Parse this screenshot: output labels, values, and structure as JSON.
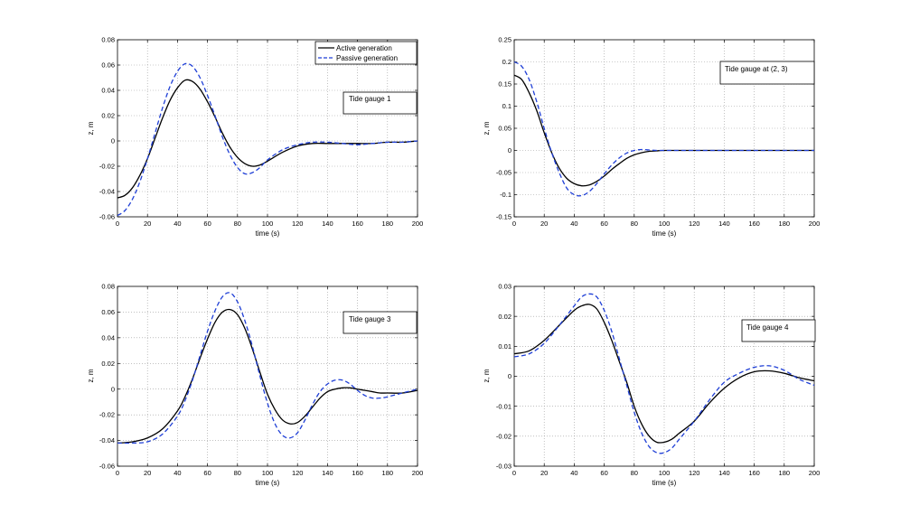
{
  "colors": {
    "active": "#000000",
    "passive": "#1f3fd6",
    "grid": "#9a9a9a"
  },
  "chart_data": [
    {
      "type": "line",
      "title": "",
      "xlabel": "time (s)",
      "ylabel": "z, m",
      "xlim": [
        0,
        200
      ],
      "ylim": [
        -0.06,
        0.08
      ],
      "xticks": [
        0,
        20,
        40,
        60,
        80,
        100,
        120,
        140,
        160,
        180,
        200
      ],
      "yticks": [
        -0.06,
        -0.04,
        -0.02,
        0,
        0.02,
        0.04,
        0.06,
        0.08
      ],
      "ytick_labels": [
        "-0.06",
        "-0.04",
        "-0.02",
        "0",
        "0.02",
        "0.04",
        "0.06",
        "0.08"
      ],
      "grid": true,
      "legend": {
        "position": "top-right",
        "entries": [
          "Active generation",
          "Passive generation"
        ]
      },
      "annotation": "Tide gauge 1",
      "series": [
        {
          "name": "Active generation",
          "style": "solid",
          "x": [
            0,
            5,
            10,
            15,
            20,
            25,
            30,
            35,
            40,
            45,
            50,
            55,
            60,
            65,
            70,
            75,
            80,
            85,
            90,
            95,
            100,
            110,
            120,
            130,
            140,
            150,
            160,
            170,
            180,
            190,
            200
          ],
          "y": [
            -0.045,
            -0.043,
            -0.037,
            -0.027,
            -0.014,
            0.002,
            0.018,
            0.032,
            0.042,
            0.048,
            0.047,
            0.041,
            0.031,
            0.019,
            0.006,
            -0.005,
            -0.013,
            -0.018,
            -0.02,
            -0.019,
            -0.016,
            -0.009,
            -0.004,
            -0.002,
            -0.002,
            -0.002,
            -0.002,
            -0.002,
            -0.001,
            -0.001,
            0
          ]
        },
        {
          "name": "Passive generation",
          "style": "dashed",
          "x": [
            0,
            5,
            10,
            15,
            20,
            25,
            30,
            35,
            40,
            45,
            50,
            55,
            60,
            65,
            70,
            75,
            80,
            85,
            90,
            95,
            100,
            110,
            120,
            130,
            140,
            150,
            160,
            170,
            180,
            190,
            200
          ],
          "y": [
            -0.059,
            -0.055,
            -0.046,
            -0.032,
            -0.014,
            0.006,
            0.026,
            0.043,
            0.055,
            0.061,
            0.059,
            0.05,
            0.036,
            0.02,
            0.003,
            -0.011,
            -0.021,
            -0.026,
            -0.025,
            -0.021,
            -0.015,
            -0.007,
            -0.003,
            -0.001,
            -0.001,
            -0.002,
            -0.003,
            -0.002,
            -0.001,
            -0.001,
            0
          ]
        }
      ]
    },
    {
      "type": "line",
      "title": "",
      "xlabel": "time (s)",
      "ylabel": "z, m",
      "xlim": [
        0,
        200
      ],
      "ylim": [
        -0.15,
        0.25
      ],
      "xticks": [
        0,
        20,
        40,
        60,
        80,
        100,
        120,
        140,
        160,
        180,
        200
      ],
      "yticks": [
        -0.15,
        -0.1,
        -0.05,
        0,
        0.05,
        0.1,
        0.15,
        0.2,
        0.25
      ],
      "ytick_labels": [
        "-0.15",
        "-0.1",
        "-0.05",
        "0",
        "0.05",
        "0.1",
        "0.15",
        "0.2",
        "0.25"
      ],
      "grid": true,
      "annotation": "Tide gauge at (2, 3)",
      "series": [
        {
          "name": "Active generation",
          "style": "solid",
          "x": [
            0,
            5,
            10,
            15,
            20,
            25,
            30,
            35,
            40,
            45,
            50,
            55,
            60,
            65,
            70,
            75,
            80,
            85,
            90,
            95,
            100,
            120,
            140,
            160,
            180,
            200
          ],
          "y": [
            0.17,
            0.16,
            0.13,
            0.09,
            0.04,
            -0.005,
            -0.04,
            -0.063,
            -0.075,
            -0.08,
            -0.078,
            -0.07,
            -0.058,
            -0.043,
            -0.03,
            -0.018,
            -0.01,
            -0.005,
            -0.002,
            -0.001,
            0,
            0,
            0,
            0,
            0,
            0
          ]
        },
        {
          "name": "Passive generation",
          "style": "dashed",
          "x": [
            0,
            5,
            10,
            15,
            20,
            25,
            30,
            35,
            40,
            45,
            50,
            55,
            60,
            65,
            70,
            75,
            80,
            85,
            90,
            95,
            100,
            120,
            140,
            160,
            180,
            200
          ],
          "y": [
            0.2,
            0.19,
            0.16,
            0.11,
            0.05,
            -0.005,
            -0.05,
            -0.085,
            -0.1,
            -0.102,
            -0.093,
            -0.075,
            -0.053,
            -0.033,
            -0.017,
            -0.006,
            0,
            0.002,
            0.001,
            0,
            0,
            0,
            0,
            0,
            0,
            0
          ]
        }
      ]
    },
    {
      "type": "line",
      "title": "",
      "xlabel": "time (s)",
      "ylabel": "z, m",
      "xlim": [
        0,
        200
      ],
      "ylim": [
        -0.06,
        0.08
      ],
      "xticks": [
        0,
        20,
        40,
        60,
        80,
        100,
        120,
        140,
        160,
        180,
        200
      ],
      "yticks": [
        -0.06,
        -0.04,
        -0.02,
        0,
        0.02,
        0.04,
        0.06,
        0.08
      ],
      "ytick_labels": [
        "-0.06",
        "-0.04",
        "-0.02",
        "0",
        "0.02",
        "0.04",
        "0.06",
        "0.08"
      ],
      "grid": true,
      "annotation": "Tide gauge 3",
      "series": [
        {
          "name": "Active generation",
          "style": "solid",
          "x": [
            0,
            10,
            20,
            30,
            40,
            45,
            50,
            55,
            60,
            65,
            70,
            75,
            80,
            85,
            90,
            95,
            100,
            105,
            110,
            115,
            120,
            125,
            130,
            135,
            140,
            145,
            150,
            155,
            160,
            165,
            170,
            175,
            180,
            190,
            200
          ],
          "y": [
            -0.042,
            -0.041,
            -0.038,
            -0.031,
            -0.017,
            -0.006,
            0.008,
            0.024,
            0.039,
            0.052,
            0.06,
            0.062,
            0.058,
            0.047,
            0.031,
            0.013,
            -0.004,
            -0.016,
            -0.024,
            -0.027,
            -0.026,
            -0.021,
            -0.014,
            -0.007,
            -0.002,
            0.0,
            0.001,
            0.001,
            0.0,
            -0.001,
            -0.002,
            -0.003,
            -0.003,
            -0.003,
            -0.001
          ]
        },
        {
          "name": "Passive generation",
          "style": "dashed",
          "x": [
            0,
            10,
            20,
            30,
            40,
            45,
            50,
            55,
            60,
            65,
            70,
            75,
            80,
            85,
            90,
            95,
            100,
            105,
            110,
            115,
            120,
            125,
            130,
            135,
            140,
            145,
            150,
            155,
            160,
            165,
            170,
            175,
            180,
            190,
            200
          ],
          "y": [
            -0.042,
            -0.042,
            -0.041,
            -0.035,
            -0.021,
            -0.009,
            0.007,
            0.026,
            0.045,
            0.061,
            0.072,
            0.075,
            0.068,
            0.053,
            0.033,
            0.01,
            -0.011,
            -0.027,
            -0.036,
            -0.038,
            -0.034,
            -0.024,
            -0.012,
            -0.002,
            0.004,
            0.007,
            0.007,
            0.004,
            -0.001,
            -0.005,
            -0.007,
            -0.007,
            -0.006,
            -0.003,
            0.0
          ]
        }
      ]
    },
    {
      "type": "line",
      "title": "",
      "xlabel": "time (s)",
      "ylabel": "z, m",
      "xlim": [
        0,
        200
      ],
      "ylim": [
        -0.03,
        0.03
      ],
      "xticks": [
        0,
        20,
        40,
        60,
        80,
        100,
        120,
        140,
        160,
        180,
        200
      ],
      "yticks": [
        -0.03,
        -0.02,
        -0.01,
        0,
        0.01,
        0.02,
        0.03
      ],
      "ytick_labels": [
        "-0.03",
        "-0.02",
        "-0.01",
        "0",
        "0.01",
        "0.02",
        "0.03"
      ],
      "grid": true,
      "annotation": "Tide gauge 4",
      "series": [
        {
          "name": "Active generation",
          "style": "solid",
          "x": [
            0,
            10,
            20,
            30,
            40,
            45,
            50,
            55,
            60,
            65,
            70,
            75,
            80,
            85,
            90,
            95,
            100,
            105,
            110,
            120,
            130,
            140,
            150,
            160,
            170,
            180,
            190,
            200
          ],
          "y": [
            0.0075,
            0.0085,
            0.012,
            0.017,
            0.022,
            0.0235,
            0.024,
            0.0225,
            0.018,
            0.012,
            0.005,
            -0.002,
            -0.01,
            -0.016,
            -0.02,
            -0.022,
            -0.022,
            -0.021,
            -0.019,
            -0.015,
            -0.009,
            -0.004,
            -0.0005,
            0.0015,
            0.0018,
            0.001,
            -0.0005,
            -0.0015
          ]
        },
        {
          "name": "Passive generation",
          "style": "dashed",
          "x": [
            0,
            10,
            20,
            30,
            40,
            45,
            50,
            55,
            60,
            65,
            70,
            75,
            80,
            85,
            90,
            95,
            100,
            105,
            110,
            120,
            130,
            140,
            150,
            160,
            170,
            180,
            190,
            200
          ],
          "y": [
            0.0065,
            0.0075,
            0.011,
            0.017,
            0.0235,
            0.0265,
            0.0275,
            0.0265,
            0.022,
            0.015,
            0.006,
            -0.003,
            -0.012,
            -0.019,
            -0.0235,
            -0.0255,
            -0.0255,
            -0.024,
            -0.021,
            -0.015,
            -0.008,
            -0.002,
            0.001,
            0.003,
            0.0035,
            0.002,
            -0.001,
            -0.003
          ]
        }
      ]
    }
  ]
}
